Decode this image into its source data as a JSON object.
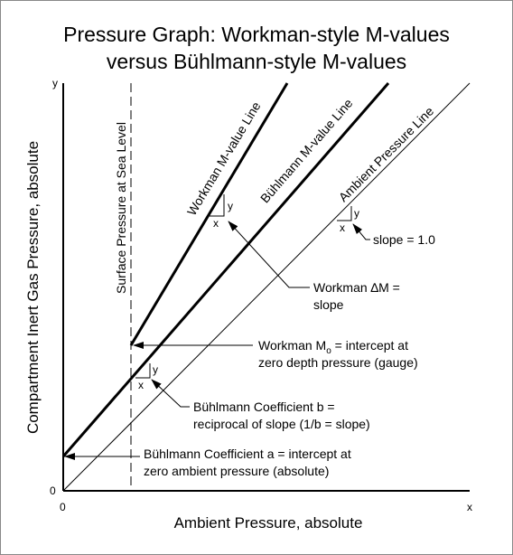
{
  "title": {
    "line1": "Pressure Graph:   Workman-style M-values",
    "line2": "versus Bühlmann-style M-values"
  },
  "axes": {
    "x_label": "Ambient Pressure, absolute",
    "y_label": "Compartment Inert Gas Pressure, absolute",
    "x_end": "x",
    "y_end": "y",
    "x_origin": "0",
    "y_origin": "0"
  },
  "lines": {
    "workman": "Workman M-value Line",
    "buhlmann": "Bühlmann M-value Line",
    "ambient": "Ambient Pressure Line",
    "surface": "Surface Pressure at Sea Level"
  },
  "triangles": {
    "x": "x",
    "y": "y"
  },
  "annotations": {
    "slope": "slope = 1.0",
    "workman_dm": {
      "line1": "Workman ∆M =",
      "line2": "slope"
    },
    "workman_mo": {
      "line1": {
        "prefix": "Workman M",
        "subscript": "o",
        "suffix": " = intercept at"
      },
      "line2": "zero depth pressure (gauge)"
    },
    "buhlmann_b": {
      "line1": "Bühlmann Coefficient b =",
      "line2": "reciprocal of slope (1/b = slope)"
    },
    "buhlmann_a": {
      "line1": "Bühlmann Coefficient a = intercept at",
      "line2": "zero ambient pressure (absolute)"
    }
  }
}
